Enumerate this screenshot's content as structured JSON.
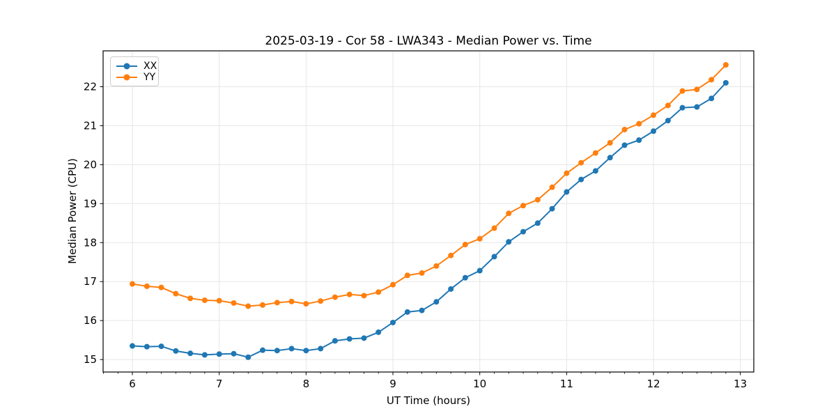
{
  "figure": {
    "title": "2025-03-19 - Cor 58 - LWA343 - Median Power vs. Time",
    "background": "#ffffff",
    "text_color": "#000000",
    "grid_color": "#e6e6e6",
    "spine_color": "#000000"
  },
  "chart_data": {
    "type": "line",
    "title": "2025-03-19 - Cor 58 - LWA343 - Median Power vs. Time",
    "xlabel": "UT Time (hours)",
    "ylabel": "Median Power (CPU)",
    "xlim": [
      5.663,
      13.155
    ],
    "ylim": [
      14.68,
      22.92
    ],
    "x_ticks": [
      6,
      7,
      8,
      9,
      10,
      11,
      12,
      13
    ],
    "y_ticks": [
      15,
      16,
      17,
      18,
      19,
      20,
      21,
      22
    ],
    "x_minor_step": 0.166667,
    "grid": true,
    "legend_position": "upper-left",
    "marker": "o",
    "x": [
      6.0,
      6.167,
      6.333,
      6.5,
      6.667,
      6.833,
      7.0,
      7.167,
      7.333,
      7.5,
      7.667,
      7.833,
      8.0,
      8.167,
      8.333,
      8.5,
      8.667,
      8.833,
      9.0,
      9.167,
      9.333,
      9.5,
      9.667,
      9.833,
      10.0,
      10.167,
      10.333,
      10.5,
      10.667,
      10.833,
      11.0,
      11.167,
      11.333,
      11.5,
      11.667,
      11.833,
      12.0,
      12.167,
      12.333,
      12.5,
      12.667,
      12.833
    ],
    "series": [
      {
        "name": "XX",
        "color": "#1f77b4",
        "values": [
          15.35,
          15.33,
          15.34,
          15.22,
          15.16,
          15.12,
          15.14,
          15.15,
          15.06,
          15.24,
          15.23,
          15.28,
          15.23,
          15.28,
          15.48,
          15.53,
          15.55,
          15.7,
          15.95,
          16.22,
          16.26,
          16.48,
          16.81,
          17.1,
          17.28,
          17.64,
          18.02,
          18.28,
          18.5,
          18.87,
          19.3,
          19.62,
          19.84,
          20.18,
          20.5,
          20.63,
          20.86,
          21.13,
          21.46,
          21.48,
          21.7,
          22.1
        ]
      },
      {
        "name": "YY",
        "color": "#ff7f0e",
        "values": [
          16.94,
          16.88,
          16.85,
          16.69,
          16.57,
          16.52,
          16.51,
          16.45,
          16.37,
          16.4,
          16.46,
          16.49,
          16.43,
          16.5,
          16.6,
          16.67,
          16.64,
          16.73,
          16.92,
          17.16,
          17.22,
          17.4,
          17.67,
          17.95,
          18.1,
          18.37,
          18.75,
          18.95,
          19.1,
          19.42,
          19.78,
          20.05,
          20.3,
          20.56,
          20.9,
          21.05,
          21.27,
          21.52,
          21.89,
          21.93,
          22.18,
          22.56
        ]
      }
    ]
  }
}
